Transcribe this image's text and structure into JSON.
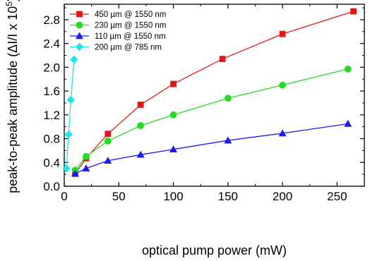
{
  "chart_data": {
    "type": "line",
    "xlabel": "optical pump power (mW)",
    "ylabel_prefix": "peak-to-peak amplitude (ΔI/I x 10",
    "ylabel_exp": "5",
    "ylabel_suffix": ")",
    "xlim": [
      0,
      275
    ],
    "ylim": [
      0.0,
      3.06
    ],
    "xticks": [
      0,
      50,
      100,
      150,
      200,
      250
    ],
    "xtick_labels": [
      "0",
      "50",
      "100",
      "150",
      "200",
      "250"
    ],
    "yticks": [
      0.0,
      0.4,
      0.8,
      1.2,
      1.6,
      2.0,
      2.4,
      2.8
    ],
    "ytick_labels": [
      "0.0",
      "0.4",
      "0.8",
      "1.2",
      "1.6",
      "2.0",
      "2.4",
      "2.8"
    ],
    "grid": false,
    "legend_position": "top-left",
    "series": [
      {
        "name": "450 µm @ 1550 nm",
        "color": "#e01818",
        "marker": "square",
        "x": [
          10,
          20,
          40,
          70,
          100,
          145,
          200,
          265
        ],
        "y": [
          0.21,
          0.47,
          0.88,
          1.37,
          1.72,
          2.14,
          2.56,
          2.94
        ]
      },
      {
        "name": "230 µm @ 1550 nm",
        "color": "#22dd22",
        "marker": "circle",
        "x": [
          10,
          20,
          40,
          70,
          100,
          150,
          200,
          260
        ],
        "y": [
          0.27,
          0.5,
          0.76,
          1.02,
          1.2,
          1.48,
          1.7,
          1.97
        ]
      },
      {
        "name": "110 µm @ 1550 nm",
        "color": "#1a1aee",
        "marker": "triangle",
        "x": [
          10,
          20,
          40,
          70,
          100,
          150,
          200,
          260
        ],
        "y": [
          0.21,
          0.3,
          0.43,
          0.53,
          0.62,
          0.77,
          0.89,
          1.05
        ]
      },
      {
        "name": "200 µm @ 785 nm",
        "color": "#22e5e5",
        "marker": "diamond",
        "x": [
          2,
          4,
          6,
          9
        ],
        "y": [
          0.3,
          0.87,
          1.45,
          2.13
        ]
      }
    ]
  }
}
